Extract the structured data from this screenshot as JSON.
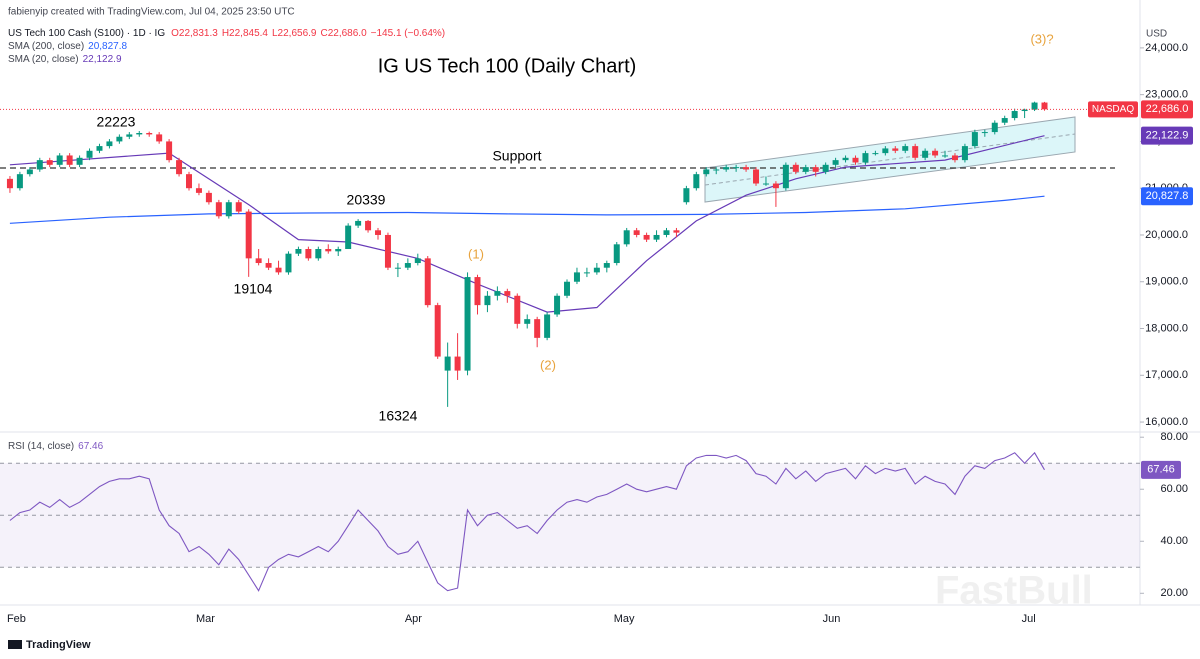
{
  "header": {
    "credit": "fabienyip created with TradingView.com, Jul 04, 2025 23:50 UTC",
    "symbol": "US Tech 100 Cash (S100) · 1D · IG",
    "ohlc": [
      "O22,831.3",
      "H22,845.4",
      "L22,656.9",
      "C22,686.0",
      "−145.1 (−0.64%)"
    ]
  },
  "footer": "TradingView",
  "watermark": "FastBull",
  "chart_data": [
    {
      "type": "candlestick",
      "title": "IG US Tech 100 (Daily Chart)",
      "currency": "USD",
      "up_color": "#089981",
      "down_color": "#f23645",
      "exchange": "NASDAQ",
      "last_label": "22,686.0",
      "annotations": [
        "22223",
        "20339",
        "19104",
        "16324",
        "Support",
        "(1)",
        "(2)",
        "(3)?"
      ],
      "categories": [
        "Feb",
        null,
        null,
        null,
        null,
        null,
        null,
        null,
        null,
        null,
        null,
        null,
        null,
        null,
        null,
        null,
        null,
        null,
        null,
        "Mar",
        null,
        null,
        null,
        null,
        null,
        null,
        null,
        null,
        null,
        null,
        null,
        null,
        null,
        null,
        null,
        null,
        null,
        null,
        null,
        null,
        "Apr",
        null,
        null,
        null,
        null,
        null,
        null,
        null,
        null,
        null,
        null,
        null,
        null,
        null,
        null,
        null,
        null,
        null,
        null,
        null,
        null,
        "May",
        null,
        null,
        null,
        null,
        null,
        null,
        null,
        null,
        null,
        null,
        null,
        null,
        null,
        null,
        null,
        null,
        null,
        null,
        null,
        null,
        "Jun",
        null,
        null,
        null,
        null,
        null,
        null,
        null,
        null,
        null,
        null,
        null,
        null,
        null,
        null,
        null,
        null,
        null,
        null,
        null,
        "Jul",
        null,
        null
      ],
      "candles": [
        [
          21200,
          21260,
          20900,
          21000
        ],
        [
          21000,
          21350,
          20950,
          21300
        ],
        [
          21300,
          21450,
          21250,
          21400
        ],
        [
          21400,
          21650,
          21350,
          21600
        ],
        [
          21600,
          21650,
          21450,
          21500
        ],
        [
          21500,
          21750,
          21450,
          21700
        ],
        [
          21700,
          21750,
          21450,
          21500
        ],
        [
          21500,
          21700,
          21450,
          21650
        ],
        [
          21650,
          21850,
          21600,
          21800
        ],
        [
          21800,
          21950,
          21750,
          21900
        ],
        [
          21900,
          22050,
          21850,
          22000
        ],
        [
          22000,
          22150,
          21950,
          22100
        ],
        [
          22100,
          22200,
          22050,
          22150
        ],
        [
          22150,
          22223,
          22100,
          22180
        ],
        [
          22180,
          22210,
          22100,
          22150
        ],
        [
          22150,
          22200,
          21950,
          22000
        ],
        [
          22000,
          22050,
          21550,
          21600
        ],
        [
          21600,
          21650,
          21250,
          21300
        ],
        [
          21300,
          21350,
          20950,
          21000
        ],
        [
          21000,
          21100,
          20850,
          20900
        ],
        [
          20900,
          20950,
          20650,
          20700
        ],
        [
          20700,
          20750,
          20350,
          20400
        ],
        [
          20400,
          20750,
          20350,
          20700
        ],
        [
          20700,
          20750,
          20450,
          20500
        ],
        [
          20500,
          20550,
          19104,
          19500
        ],
        [
          19500,
          19700,
          19350,
          19400
        ],
        [
          19400,
          19500,
          19250,
          19300
        ],
        [
          19300,
          19450,
          19150,
          19200
        ],
        [
          19200,
          19650,
          19150,
          19600
        ],
        [
          19600,
          19750,
          19550,
          19700
        ],
        [
          19700,
          19750,
          19450,
          19500
        ],
        [
          19500,
          19750,
          19450,
          19700
        ],
        [
          19700,
          19800,
          19600,
          19650
        ],
        [
          19650,
          19750,
          19550,
          19700
        ],
        [
          19700,
          20250,
          19700,
          20200
        ],
        [
          20200,
          20339,
          20150,
          20300
        ],
        [
          20300,
          20320,
          20050,
          20100
        ],
        [
          20100,
          20150,
          19900,
          20000
        ],
        [
          20000,
          20050,
          19250,
          19300
        ],
        [
          19300,
          19400,
          19100,
          19300
        ],
        [
          19300,
          19500,
          19250,
          19400
        ],
        [
          19400,
          19600,
          19350,
          19500
        ],
        [
          19500,
          19550,
          18450,
          18500
        ],
        [
          18500,
          18550,
          17350,
          17400
        ],
        [
          17100,
          17700,
          16324,
          17400
        ],
        [
          17400,
          17900,
          16900,
          17100
        ],
        [
          17100,
          19200,
          17000,
          19100
        ],
        [
          19100,
          19150,
          18300,
          18500
        ],
        [
          18500,
          18800,
          18350,
          18700
        ],
        [
          18700,
          18900,
          18600,
          18800
        ],
        [
          18800,
          18850,
          18550,
          18700
        ],
        [
          18700,
          18750,
          18000,
          18100
        ],
        [
          18100,
          18300,
          18000,
          18200
        ],
        [
          18200,
          18250,
          17600,
          17800
        ],
        [
          17800,
          18350,
          17750,
          18300
        ],
        [
          18300,
          18750,
          18250,
          18700
        ],
        [
          18700,
          19050,
          18650,
          19000
        ],
        [
          19000,
          19300,
          18950,
          19200
        ],
        [
          19200,
          19300,
          19100,
          19200
        ],
        [
          19200,
          19400,
          19150,
          19300
        ],
        [
          19300,
          19450,
          19200,
          19400
        ],
        [
          19400,
          19850,
          19350,
          19800
        ],
        [
          19800,
          20150,
          19750,
          20100
        ],
        [
          20100,
          20150,
          19950,
          20000
        ],
        [
          20000,
          20050,
          19850,
          19900
        ],
        [
          19900,
          20100,
          19850,
          20000
        ],
        [
          20000,
          20150,
          19950,
          20100
        ],
        [
          20100,
          20150,
          19950,
          20050
        ],
        [
          20700,
          21050,
          20650,
          21000
        ],
        [
          21000,
          21350,
          20950,
          21300
        ],
        [
          21300,
          21450,
          21250,
          21400
        ],
        [
          21400,
          21450,
          21300,
          21400
        ],
        [
          21400,
          21500,
          21350,
          21450
        ],
        [
          21450,
          21500,
          21350,
          21450
        ],
        [
          21450,
          21500,
          21350,
          21400
        ],
        [
          21400,
          21450,
          21050,
          21100
        ],
        [
          21100,
          21250,
          21050,
          21100
        ],
        [
          21100,
          21150,
          20600,
          21000
        ],
        [
          21000,
          21550,
          20950,
          21500
        ],
        [
          21500,
          21550,
          21300,
          21350
        ],
        [
          21350,
          21500,
          21300,
          21450
        ],
        [
          21450,
          21500,
          21250,
          21350
        ],
        [
          21350,
          21550,
          21300,
          21500
        ],
        [
          21500,
          21650,
          21450,
          21600
        ],
        [
          21600,
          21700,
          21550,
          21650
        ],
        [
          21650,
          21700,
          21500,
          21550
        ],
        [
          21550,
          21800,
          21500,
          21750
        ],
        [
          21750,
          21800,
          21700,
          21750
        ],
        [
          21750,
          21900,
          21700,
          21850
        ],
        [
          21850,
          21900,
          21750,
          21800
        ],
        [
          21800,
          21950,
          21750,
          21900
        ],
        [
          21900,
          21950,
          21600,
          21650
        ],
        [
          21650,
          21850,
          21600,
          21800
        ],
        [
          21800,
          21850,
          21650,
          21700
        ],
        [
          21700,
          21800,
          21650,
          21700
        ],
        [
          21700,
          21750,
          21550,
          21600
        ],
        [
          21600,
          21950,
          21550,
          21900
        ],
        [
          21900,
          22250,
          21850,
          22200
        ],
        [
          22200,
          22250,
          22100,
          22200
        ],
        [
          22200,
          22450,
          22150,
          22400
        ],
        [
          22400,
          22550,
          22350,
          22500
        ],
        [
          22500,
          22700,
          22450,
          22650
        ],
        [
          22650,
          22700,
          22500,
          22680
        ],
        [
          22680,
          22850,
          22650,
          22831
        ],
        [
          22831.3,
          22845.4,
          22656.9,
          22686
        ]
      ],
      "series": [
        {
          "name": "SMA (200, close)",
          "color": "#2962ff",
          "value_label": "20,827.8",
          "x": [
            0,
            10,
            20,
            30,
            40,
            50,
            60,
            70,
            80,
            90,
            100,
            104
          ],
          "values": [
            20250,
            20380,
            20450,
            20470,
            20480,
            20450,
            20430,
            20440,
            20480,
            20560,
            20740,
            20827.8
          ]
        },
        {
          "name": "SMA (20, close)",
          "color": "#673ab7",
          "value_label": "22,122.9",
          "x": [
            0,
            16,
            24,
            29,
            34,
            41,
            47,
            54,
            59,
            64,
            69,
            74,
            79,
            84,
            94,
            104
          ],
          "values": [
            21500,
            21750,
            20650,
            19900,
            19850,
            19500,
            18950,
            18350,
            18450,
            19450,
            20300,
            20850,
            21200,
            21450,
            21600,
            22122.9
          ]
        }
      ],
      "xlim": [
        -1,
        113.6
      ],
      "ylim": [
        15830,
        24810
      ],
      "yticks": [
        {
          "value": 16000,
          "label": "16,000.0"
        },
        {
          "value": 17000,
          "label": "17,000.0"
        },
        {
          "value": 18000,
          "label": "18,000.0"
        },
        {
          "value": 19000,
          "label": "19,000.0"
        },
        {
          "value": 20000,
          "label": "20,000.0"
        },
        {
          "value": 21000,
          "label": "21,000.0"
        },
        {
          "value": 22000,
          "label": "22,000.0"
        },
        {
          "value": 23000,
          "label": "23,000.0"
        },
        {
          "value": 24000,
          "label": "24,000.0"
        }
      ]
    },
    {
      "type": "line",
      "name": "RSI (14, close)",
      "color": "#7e57c2",
      "value_label": "67.46",
      "values": [
        48,
        51,
        52,
        55,
        53,
        56,
        53,
        55,
        58,
        61,
        63,
        64,
        64,
        65,
        64,
        52,
        46,
        43,
        36,
        38,
        35,
        31,
        37,
        33,
        27,
        21,
        30,
        33,
        35,
        34,
        36,
        38,
        36,
        40,
        46,
        52,
        48,
        44,
        38,
        35,
        36,
        40,
        32,
        24,
        21,
        22,
        52,
        46,
        50,
        51,
        48,
        45,
        46,
        43,
        48,
        52,
        55,
        56,
        55,
        57,
        58,
        60,
        62,
        60,
        59,
        60,
        61,
        60,
        69,
        72,
        73,
        73,
        72,
        73,
        71,
        66,
        65,
        62,
        68,
        64,
        67,
        63,
        66,
        67,
        68,
        64,
        69,
        66,
        68,
        67,
        68,
        62,
        65,
        63,
        62,
        58,
        65,
        69,
        68,
        71,
        72,
        74,
        70,
        74,
        67.46
      ],
      "levels": [
        70,
        50,
        30
      ],
      "ylim": [
        15.5,
        82
      ],
      "yticks": [
        {
          "value": 20,
          "label": "20.00"
        },
        {
          "value": 40,
          "label": "40.00"
        },
        {
          "value": 60,
          "label": "60.00"
        },
        {
          "value": 80,
          "label": "80.00"
        }
      ]
    }
  ]
}
